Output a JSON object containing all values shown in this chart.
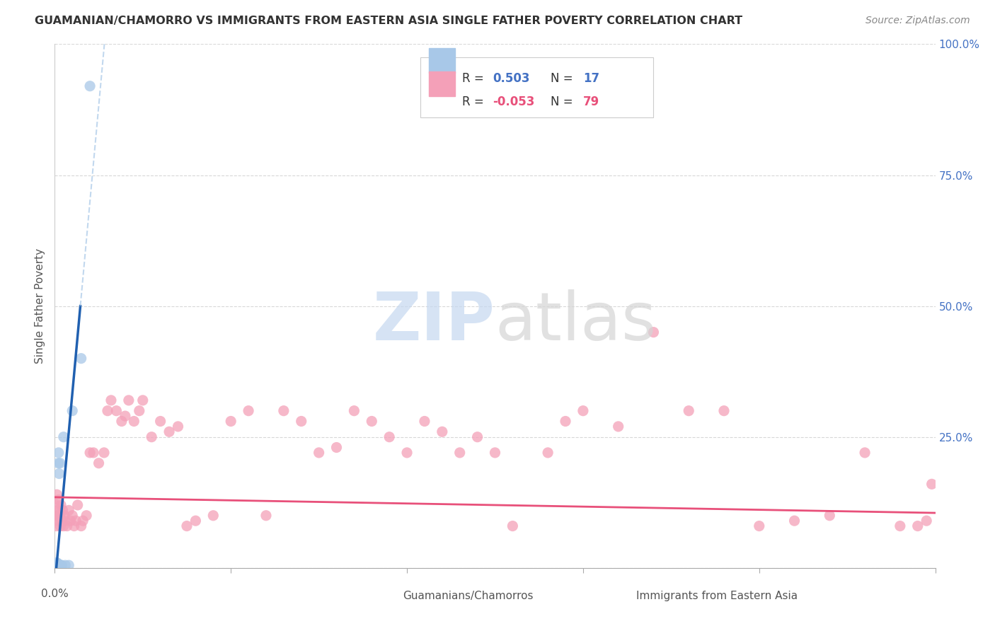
{
  "title": "GUAMANIAN/CHAMORRO VS IMMIGRANTS FROM EASTERN ASIA SINGLE FATHER POVERTY CORRELATION CHART",
  "source": "Source: ZipAtlas.com",
  "ylabel": "Single Father Poverty",
  "xlim": [
    0.0,
    0.5
  ],
  "ylim": [
    0.0,
    1.0
  ],
  "r_blue": "0.503",
  "n_blue": "17",
  "r_pink": "-0.053",
  "n_pink": "79",
  "legend_label_blue": "Guamanians/Chamorros",
  "legend_label_pink": "Immigrants from Eastern Asia",
  "blue_color": "#a8c8e8",
  "pink_color": "#f4a0b8",
  "blue_line_color": "#2060b0",
  "pink_line_color": "#e8507a",
  "blue_text_color": "#4472c4",
  "pink_text_color": "#e8507a",
  "right_axis_color": "#4472c4",
  "grid_color": "#d8d8d8",
  "title_color": "#333333",
  "source_color": "#888888",
  "blue_scatter_x": [
    0.0008,
    0.0012,
    0.0015,
    0.0018,
    0.002,
    0.0022,
    0.0025,
    0.003,
    0.0032,
    0.0035,
    0.004,
    0.005,
    0.006,
    0.008,
    0.01,
    0.015,
    0.02
  ],
  "blue_scatter_y": [
    0.005,
    0.01,
    0.005,
    0.008,
    0.2,
    0.22,
    0.18,
    0.2,
    0.005,
    0.005,
    0.005,
    0.25,
    0.005,
    0.005,
    0.3,
    0.4,
    0.92
  ],
  "pink_scatter_x": [
    0.0005,
    0.0008,
    0.001,
    0.0012,
    0.0015,
    0.0018,
    0.002,
    0.0022,
    0.0025,
    0.003,
    0.0032,
    0.0035,
    0.004,
    0.0045,
    0.005,
    0.0055,
    0.006,
    0.007,
    0.008,
    0.009,
    0.01,
    0.011,
    0.012,
    0.013,
    0.015,
    0.016,
    0.018,
    0.02,
    0.022,
    0.025,
    0.028,
    0.03,
    0.032,
    0.035,
    0.038,
    0.04,
    0.042,
    0.045,
    0.048,
    0.05,
    0.055,
    0.06,
    0.065,
    0.07,
    0.075,
    0.08,
    0.09,
    0.1,
    0.11,
    0.12,
    0.13,
    0.14,
    0.15,
    0.16,
    0.17,
    0.18,
    0.19,
    0.2,
    0.21,
    0.22,
    0.23,
    0.24,
    0.25,
    0.26,
    0.28,
    0.29,
    0.3,
    0.32,
    0.34,
    0.36,
    0.38,
    0.4,
    0.42,
    0.44,
    0.46,
    0.48,
    0.49,
    0.495,
    0.498
  ],
  "pink_scatter_y": [
    0.1,
    0.12,
    0.08,
    0.14,
    0.1,
    0.11,
    0.09,
    0.13,
    0.1,
    0.1,
    0.08,
    0.12,
    0.09,
    0.11,
    0.08,
    0.1,
    0.09,
    0.08,
    0.11,
    0.09,
    0.1,
    0.08,
    0.09,
    0.12,
    0.08,
    0.09,
    0.1,
    0.22,
    0.22,
    0.2,
    0.22,
    0.3,
    0.32,
    0.3,
    0.28,
    0.29,
    0.32,
    0.28,
    0.3,
    0.32,
    0.25,
    0.28,
    0.26,
    0.27,
    0.08,
    0.09,
    0.1,
    0.28,
    0.3,
    0.1,
    0.3,
    0.28,
    0.22,
    0.23,
    0.3,
    0.28,
    0.25,
    0.22,
    0.28,
    0.26,
    0.22,
    0.25,
    0.22,
    0.08,
    0.22,
    0.28,
    0.3,
    0.27,
    0.45,
    0.3,
    0.3,
    0.08,
    0.09,
    0.1,
    0.22,
    0.08,
    0.08,
    0.09,
    0.16
  ],
  "pink_line_start_x": 0.0,
  "pink_line_start_y": 0.135,
  "pink_line_end_x": 0.5,
  "pink_line_end_y": 0.105
}
